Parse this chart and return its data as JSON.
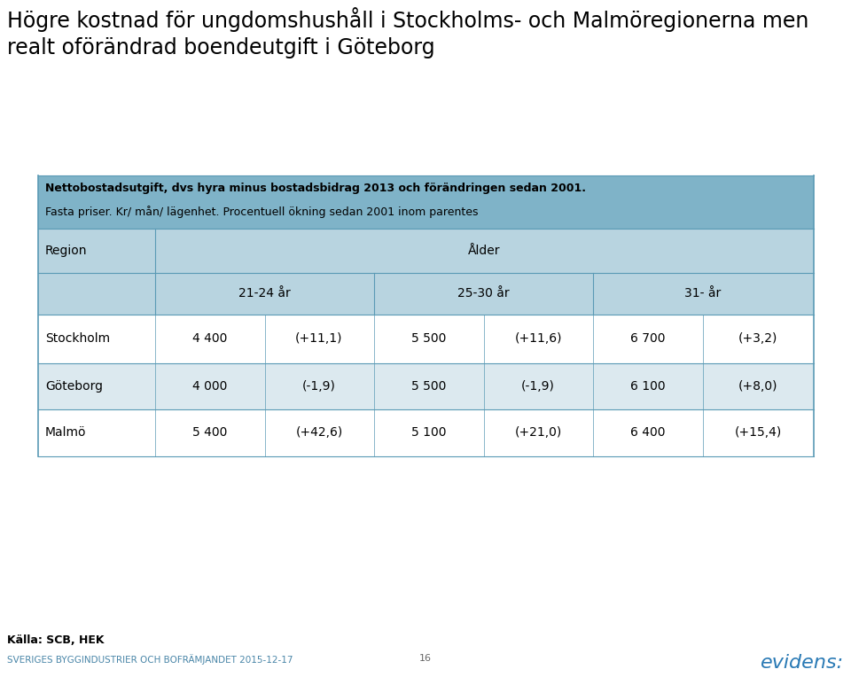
{
  "title_line1": "Högre kostnad för ungdomshushåll i Stockholms- och Malmöregionerna men",
  "title_line2": "realt oförändrad boendeutgift i Göteborg",
  "table_header_note_bold": "Nettobostadsutgift, dvs hyra minus bostadsbidrag 2013 och förändringen sedan 2001.",
  "table_header_note2": "Fasta priser. Kr/ mån/ lägenhet. Procentuell ökning sedan 2001 inom parentes",
  "col_header_region": "Region",
  "col_header_alder": "Ålder",
  "age_groups": [
    "21-24 år",
    "25-30 år",
    "31- år"
  ],
  "rows": [
    {
      "region": "Stockholm",
      "values": [
        "4 400",
        "(+11,1)",
        "5 500",
        "(+11,6)",
        "6 700",
        "(+3,2)"
      ]
    },
    {
      "region": "Göteborg",
      "values": [
        "4 000",
        "(-1,9)",
        "5 500",
        "(-1,9)",
        "6 100",
        "(+8,0)"
      ]
    },
    {
      "region": "Malmö",
      "values": [
        "5 400",
        "(+42,6)",
        "5 100",
        "(+21,0)",
        "6 400",
        "(+15,4)"
      ]
    }
  ],
  "footer_source": "Källa: SCB, HEK",
  "footer_org": "SVERIGES BYGGINDUSTRIER OCH BOFRÄMJANDET 2015-12-17",
  "footer_page": "16",
  "header_bg_color": "#7fb3c8",
  "subheader_bg_color": "#b8d4e0",
  "row_odd_color": "#ffffff",
  "row_even_color": "#dce9ef",
  "table_border_color": "#5a9ab5",
  "title_color": "#000000",
  "text_color": "#000000",
  "footer_org_color": "#4a86a8",
  "background_color": "#ffffff",
  "title_fontsize": 17,
  "table_text_fontsize": 10,
  "header_text_fontsize": 9
}
